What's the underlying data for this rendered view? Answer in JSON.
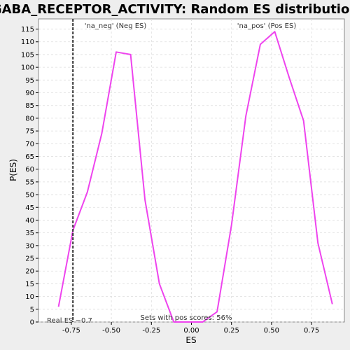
{
  "chart_data": {
    "type": "line",
    "title": "GABA_RECEPTOR_ACTIVITY: Random ES distribution",
    "xlabel": "ES",
    "ylabel": "P(ES)",
    "xlim": [
      -0.955,
      0.955
    ],
    "ylim": [
      0,
      119
    ],
    "x_ticks": [
      -0.75,
      -0.5,
      -0.25,
      0.0,
      0.25,
      0.5,
      0.75
    ],
    "x_tick_labels": [
      "-0.75",
      "-0.50",
      "-0.25",
      "0.00",
      "0.25",
      "0.50",
      "0.75"
    ],
    "y_ticks": [
      0,
      5,
      10,
      15,
      20,
      25,
      30,
      35,
      40,
      45,
      50,
      55,
      60,
      65,
      70,
      75,
      80,
      85,
      90,
      95,
      100,
      105,
      110,
      115
    ],
    "grid": true,
    "line_color": "#ee44ee",
    "series": [
      {
        "x": [
          -0.83,
          -0.74,
          -0.65,
          -0.56,
          -0.47,
          -0.38,
          -0.29,
          -0.2,
          -0.11,
          -0.02,
          0.07,
          0.16,
          0.25,
          0.34,
          0.43,
          0.52,
          0.61,
          0.7,
          0.79,
          0.88
        ],
        "values": [
          6,
          36,
          51,
          74,
          106,
          105,
          48,
          15,
          0,
          0,
          0,
          4,
          38,
          81,
          109,
          114,
          96,
          79,
          31,
          7
        ]
      }
    ],
    "reference_line": {
      "x": -0.74,
      "color": "#333333"
    },
    "annotations": {
      "neg_label": "'na_neg' (Neg ES)",
      "pos_label": "'na_pos' (Pos ES)",
      "neg_color": "#3333cc",
      "pos_color": "#ee3333",
      "real_es": "Real ES −0.7",
      "pos_scores": "Sets with pos scores: 56%"
    }
  }
}
